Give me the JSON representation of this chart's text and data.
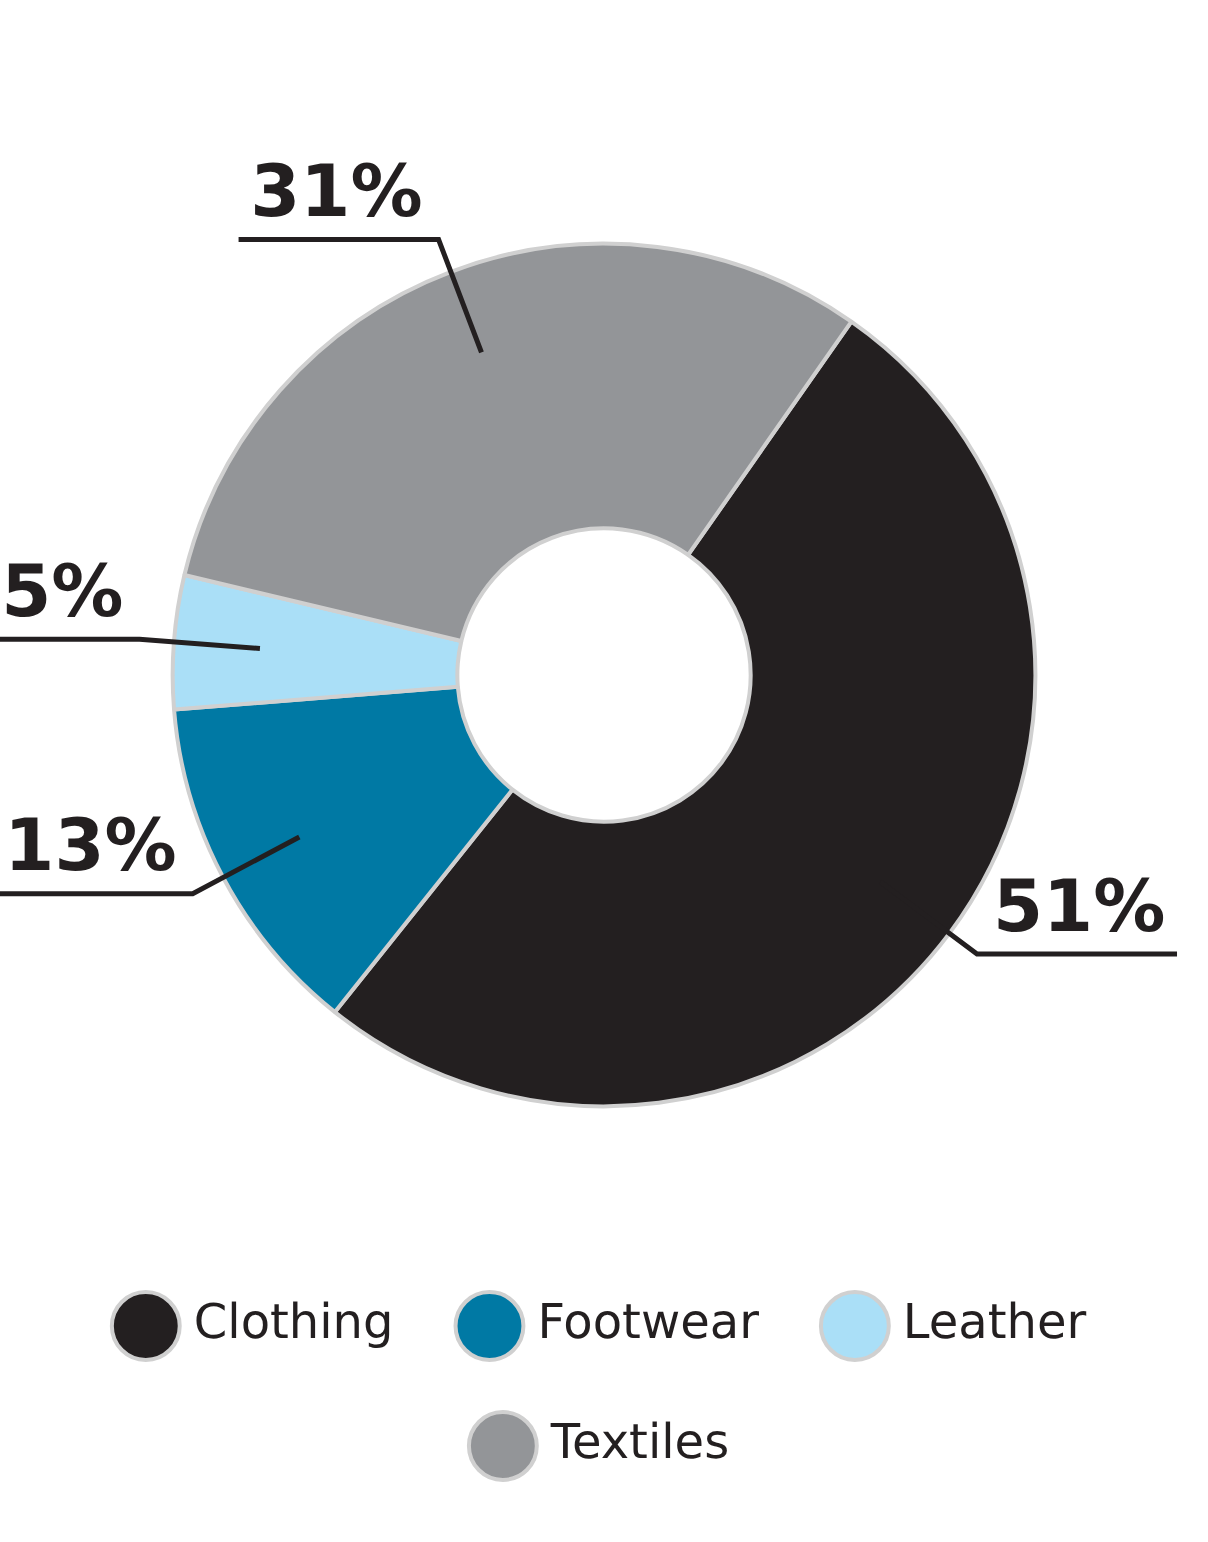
{
  "chart_data": {
    "type": "donut",
    "categories": [
      "Clothing",
      "Footwear",
      "Leather",
      "Textiles"
    ],
    "values": [
      51,
      13,
      5,
      31
    ],
    "colors": [
      "#231f20",
      "#0079a4",
      "#aadff7",
      "#939598"
    ],
    "value_labels": [
      "51%",
      "13%",
      "5%",
      "31%"
    ],
    "legend": "bottom"
  }
}
